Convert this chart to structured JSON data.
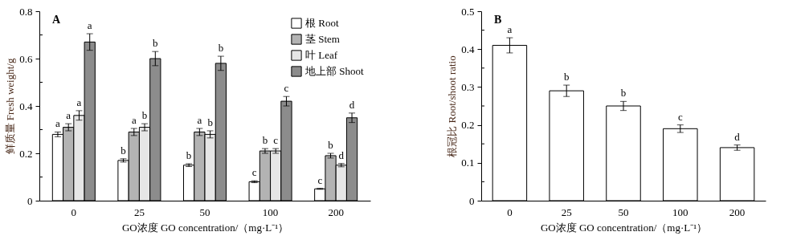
{
  "chart_data": [
    {
      "type": "bar",
      "xlabel": "GO浓度 GO concentration/（mg·L⁻¹）",
      "ylabel": "鲜质量 Fresh weight/g",
      "annotations": [
        "A"
      ],
      "categories": [
        "0",
        "25",
        "50",
        "100",
        "200"
      ],
      "ylim": [
        0,
        0.8
      ],
      "yticks": [
        0,
        {
          "value": 0.1,
          "label": null
        },
        0.2,
        {
          "value": 0.3,
          "label": null
        },
        0.4,
        {
          "value": 0.5,
          "label": null
        },
        0.6,
        {
          "value": 0.7,
          "label": null
        },
        0.8
      ],
      "legend": "top right",
      "series": [
        {
          "name": "根 Root",
          "color": "#ffffff",
          "values": [
            0.28,
            0.17,
            0.15,
            0.08,
            0.05
          ],
          "errors": [
            0.01,
            0.007,
            0.006,
            0.004,
            0.002
          ],
          "value_labels": [
            "a",
            "b",
            "b",
            "c",
            "c"
          ]
        },
        {
          "name": "茎 Stem",
          "color": "#b3b3b3",
          "values": [
            0.31,
            0.29,
            0.29,
            0.21,
            0.19
          ],
          "errors": [
            0.015,
            0.015,
            0.015,
            0.01,
            0.01
          ],
          "value_labels": [
            "a",
            "a",
            "a",
            "b",
            "b"
          ]
        },
        {
          "name": "叶 Leaf",
          "color": "#e6e6e6",
          "values": [
            0.36,
            0.31,
            0.28,
            0.21,
            0.15
          ],
          "errors": [
            0.02,
            0.015,
            0.015,
            0.01,
            0.007
          ],
          "value_labels": [
            "a",
            "b",
            "b",
            "c",
            "d"
          ]
        },
        {
          "name": "地上部 Shoot",
          "color": "#8c8c8c",
          "values": [
            0.67,
            0.6,
            0.58,
            0.42,
            0.35
          ],
          "errors": [
            0.035,
            0.03,
            0.03,
            0.02,
            0.02
          ],
          "value_labels": [
            "a",
            "b",
            "b",
            "c",
            "d"
          ]
        }
      ]
    },
    {
      "type": "bar",
      "xlabel": "GO浓度 GO concentration/（mg·L⁻¹）",
      "ylabel": "根冠比 Root/shoot ratio",
      "annotations": [
        "B"
      ],
      "categories": [
        "0",
        "25",
        "50",
        "100",
        "200"
      ],
      "ylim": [
        0,
        0.5
      ],
      "yticks": [
        0,
        {
          "value": 0.05,
          "label": null
        },
        0.1,
        {
          "value": 0.15,
          "label": null
        },
        0.2,
        {
          "value": 0.25,
          "label": null
        },
        0.3,
        {
          "value": 0.35,
          "label": null
        },
        0.4,
        {
          "value": 0.45,
          "label": null
        },
        0.5
      ],
      "color": "#ffffff",
      "values": [
        0.41,
        0.29,
        0.25,
        0.19,
        0.14
      ],
      "errors": [
        0.02,
        0.015,
        0.012,
        0.01,
        0.007
      ],
      "value_labels": [
        "a",
        "b",
        "b",
        "c",
        "d"
      ]
    }
  ]
}
